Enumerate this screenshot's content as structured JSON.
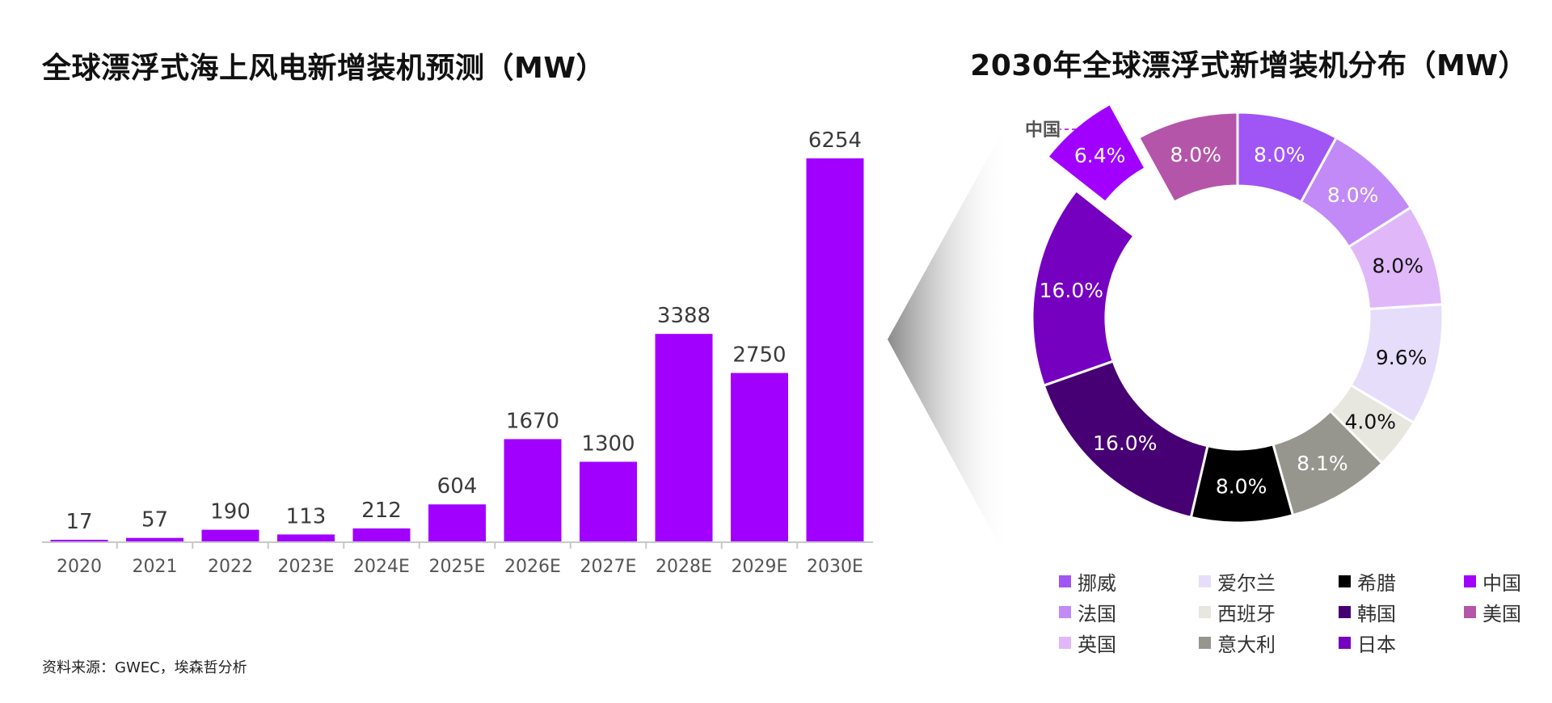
{
  "bar_title": "全球漂浮式海上风电新增装机预测（MW）",
  "pie_title": "2030年全球漂浮式新增装机分布（MW）",
  "source": "资料来源：GWEC，埃森哲分析",
  "chart_data": [
    {
      "type": "bar",
      "title": "全球漂浮式海上风电新增装机预测（MW）",
      "categories": [
        "2020",
        "2021",
        "2022",
        "2023E",
        "2024E",
        "2025E",
        "2026E",
        "2027E",
        "2028E",
        "2029E",
        "2030E"
      ],
      "values": [
        17,
        57,
        190,
        113,
        212,
        604,
        1670,
        1300,
        3388,
        2750,
        6254
      ],
      "ylim": [
        0,
        6254
      ],
      "grid": false,
      "color": "#A100FF"
    },
    {
      "type": "pie",
      "title": "2030年全球漂浮式新增装机分布（MW）",
      "slices": [
        {
          "name": "挪威",
          "value": 8.0,
          "label": "8.0%",
          "color": "#A055F5"
        },
        {
          "name": "法国",
          "value": 8.0,
          "label": "8.0%",
          "color": "#C18AF7"
        },
        {
          "name": "英国",
          "value": 8.0,
          "label": "8.0%",
          "color": "#E0B8FA"
        },
        {
          "name": "爱尔兰",
          "value": 9.6,
          "label": "9.6%",
          "color": "#E6DDFB"
        },
        {
          "name": "西班牙",
          "value": 4.0,
          "label": "4.0%",
          "color": "#E7E7DF"
        },
        {
          "name": "意大利",
          "value": 8.1,
          "label": "8.1%",
          "color": "#96968E"
        },
        {
          "name": "希腊",
          "value": 8.0,
          "label": "8.0%",
          "color": "#000000"
        },
        {
          "name": "韩国",
          "value": 16.0,
          "label": "16.0%",
          "color": "#460073"
        },
        {
          "name": "日本",
          "value": 16.0,
          "label": "16.0%",
          "color": "#7500C0"
        },
        {
          "name": "中国",
          "value": 6.4,
          "label": "6.4%",
          "color": "#A100FF",
          "exploded": true
        },
        {
          "name": "美国",
          "value": 8.0,
          "label": "8.0%",
          "color": "#B455AA"
        }
      ],
      "callout": "中国",
      "legend": [
        "挪威",
        "爱尔兰",
        "希腊",
        "中国",
        "法国",
        "西班牙",
        "韩国",
        "美国",
        "英国",
        "意大利",
        "日本"
      ],
      "legend_position": "bottom"
    }
  ]
}
